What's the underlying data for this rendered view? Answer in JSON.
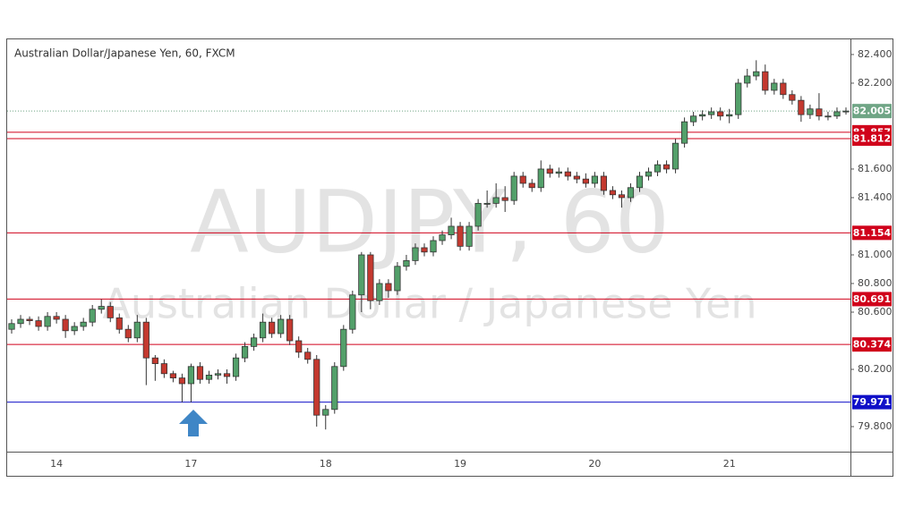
{
  "chart_data": {
    "type": "candlestick",
    "title": "Australian Dollar/Japanese Yen, 60, FXCM",
    "watermark": "AUDJPY, 60",
    "watermark_subtitle": "Australian Dollar / Japanese Yen",
    "up_color": "#53a06a",
    "down_color": "#c4392f",
    "grid": false,
    "ylim": [
      79.625,
      82.506
    ],
    "yticks": [
      {
        "value": 79.8,
        "label": "79.800"
      },
      {
        "value": 80.2,
        "label": "80.200"
      },
      {
        "value": 80.6,
        "label": "80.600"
      },
      {
        "value": 80.8,
        "label": "80.800"
      },
      {
        "value": 81.0,
        "label": "81.000"
      },
      {
        "value": 81.4,
        "label": "81.400"
      },
      {
        "value": 81.6,
        "label": "81.600"
      },
      {
        "value": 82.2,
        "label": "82.200"
      },
      {
        "value": 82.4,
        "label": "82.400"
      }
    ],
    "levels": [
      {
        "value": 82.005,
        "color": "#6fa585",
        "style": "dotted"
      },
      {
        "value": 81.857,
        "color": "#d0021b",
        "style": "solid"
      },
      {
        "value": 81.812,
        "color": "#d0021b",
        "style": "solid"
      },
      {
        "value": 81.154,
        "color": "#d0021b",
        "style": "solid"
      },
      {
        "value": 80.691,
        "color": "#d0021b",
        "style": "solid"
      },
      {
        "value": 80.374,
        "color": "#d0021b",
        "style": "solid"
      },
      {
        "value": 79.971,
        "color": "#1010c8",
        "style": "solid"
      }
    ],
    "categories": [
      null,
      null,
      null,
      null,
      null,
      "14",
      null,
      null,
      null,
      null,
      null,
      null,
      null,
      null,
      null,
      null,
      null,
      null,
      null,
      null,
      "17",
      null,
      null,
      null,
      null,
      null,
      null,
      null,
      null,
      null,
      null,
      null,
      null,
      null,
      null,
      "18",
      null,
      null,
      null,
      null,
      null,
      null,
      null,
      null,
      null,
      null,
      null,
      null,
      null,
      null,
      "19",
      null,
      null,
      null,
      null,
      null,
      null,
      null,
      null,
      null,
      null,
      null,
      null,
      null,
      null,
      "20",
      null,
      null,
      null,
      null,
      null,
      null,
      null,
      null,
      null,
      null,
      null,
      null,
      null,
      null,
      "21",
      null,
      null,
      null,
      null,
      null,
      null,
      null,
      null,
      null,
      null,
      null,
      null,
      null
    ],
    "open": [
      80.48,
      80.52,
      80.55,
      80.54,
      80.5,
      80.57,
      80.55,
      80.47,
      80.5,
      80.53,
      80.62,
      80.64,
      80.56,
      80.48,
      80.42,
      80.53,
      80.28,
      80.24,
      80.17,
      80.14,
      80.1,
      80.22,
      80.13,
      80.16,
      80.17,
      80.15,
      80.28,
      80.36,
      80.42,
      80.53,
      80.45,
      80.55,
      80.4,
      80.32,
      80.27,
      79.88,
      79.92,
      80.22,
      80.48,
      80.72,
      81.0,
      80.68,
      80.8,
      80.75,
      80.92,
      80.96,
      81.05,
      81.02,
      81.1,
      81.14,
      81.2,
      81.06,
      81.2,
      81.36,
      81.36,
      81.4,
      81.38,
      81.55,
      81.5,
      81.47,
      81.6,
      81.57,
      81.58,
      81.55,
      81.53,
      81.5,
      81.55,
      81.45,
      81.42,
      81.4,
      81.47,
      81.55,
      81.58,
      81.63,
      81.6,
      81.78,
      81.93,
      81.97,
      81.98,
      82.0,
      81.97,
      81.98,
      82.2,
      82.25,
      82.28,
      82.15,
      82.2,
      82.12,
      82.08,
      81.98,
      82.02,
      81.97,
      81.97,
      82.0
    ],
    "high": [
      80.55,
      80.58,
      80.57,
      80.57,
      80.6,
      80.6,
      80.58,
      80.53,
      80.56,
      80.65,
      80.69,
      80.67,
      80.59,
      80.51,
      80.58,
      80.56,
      80.3,
      80.27,
      80.19,
      80.17,
      80.24,
      80.25,
      80.19,
      80.2,
      80.2,
      80.31,
      80.39,
      80.45,
      80.59,
      80.56,
      80.58,
      80.58,
      80.43,
      80.35,
      80.3,
      79.95,
      80.25,
      80.51,
      80.75,
      81.02,
      81.02,
      80.83,
      80.83,
      80.95,
      81.0,
      81.08,
      81.08,
      81.13,
      81.17,
      81.26,
      81.23,
      81.23,
      81.39,
      81.45,
      81.5,
      81.48,
      81.58,
      81.58,
      81.53,
      81.66,
      81.63,
      81.61,
      81.61,
      81.58,
      81.57,
      81.58,
      81.58,
      81.48,
      81.45,
      81.5,
      81.58,
      81.61,
      81.66,
      81.66,
      81.81,
      81.96,
      82.0,
      82.01,
      82.03,
      82.03,
      82.02,
      82.23,
      82.3,
      82.36,
      82.33,
      82.23,
      82.23,
      82.15,
      82.11,
      82.05,
      82.13,
      82.0,
      82.03,
      82.03
    ],
    "low": [
      80.45,
      80.49,
      80.51,
      80.47,
      80.47,
      80.52,
      80.42,
      80.44,
      80.47,
      80.5,
      80.59,
      80.53,
      80.45,
      80.39,
      80.39,
      80.09,
      80.12,
      80.14,
      80.11,
      79.97,
      79.97,
      80.1,
      80.1,
      80.13,
      80.1,
      80.12,
      80.25,
      80.33,
      80.39,
      80.42,
      80.42,
      80.37,
      80.28,
      80.24,
      79.8,
      79.78,
      79.89,
      80.19,
      80.45,
      80.6,
      80.62,
      80.65,
      80.7,
      80.72,
      80.89,
      80.93,
      80.99,
      80.99,
      81.07,
      81.11,
      81.03,
      81.03,
      81.17,
      81.33,
      81.33,
      81.3,
      81.35,
      81.47,
      81.44,
      81.44,
      81.54,
      81.54,
      81.52,
      81.5,
      81.47,
      81.47,
      81.42,
      81.39,
      81.33,
      81.37,
      81.44,
      81.52,
      81.55,
      81.57,
      81.57,
      81.75,
      81.9,
      81.94,
      81.95,
      81.94,
      81.92,
      81.95,
      82.17,
      82.22,
      82.12,
      82.12,
      82.09,
      82.05,
      81.93,
      81.95,
      81.94,
      81.94,
      81.95,
      81.98
    ],
    "close": [
      80.52,
      80.55,
      80.54,
      80.5,
      80.57,
      80.55,
      80.47,
      80.5,
      80.53,
      80.62,
      80.64,
      80.56,
      80.48,
      80.42,
      80.53,
      80.28,
      80.24,
      80.17,
      80.14,
      80.1,
      80.22,
      80.13,
      80.16,
      80.17,
      80.15,
      80.28,
      80.36,
      80.42,
      80.53,
      80.45,
      80.55,
      80.4,
      80.32,
      80.27,
      79.88,
      79.92,
      80.22,
      80.48,
      80.72,
      81.0,
      80.68,
      80.8,
      80.75,
      80.92,
      80.96,
      81.05,
      81.02,
      81.1,
      81.14,
      81.2,
      81.06,
      81.2,
      81.36,
      81.36,
      81.4,
      81.38,
      81.55,
      81.5,
      81.47,
      81.6,
      81.57,
      81.58,
      81.55,
      81.53,
      81.5,
      81.55,
      81.45,
      81.42,
      81.4,
      81.47,
      81.55,
      81.58,
      81.63,
      81.6,
      81.78,
      81.93,
      81.97,
      81.98,
      82.0,
      81.97,
      81.98,
      82.2,
      82.25,
      82.28,
      82.15,
      82.2,
      82.12,
      82.08,
      81.98,
      82.02,
      81.97,
      81.97,
      82.0,
      82.005
    ]
  }
}
